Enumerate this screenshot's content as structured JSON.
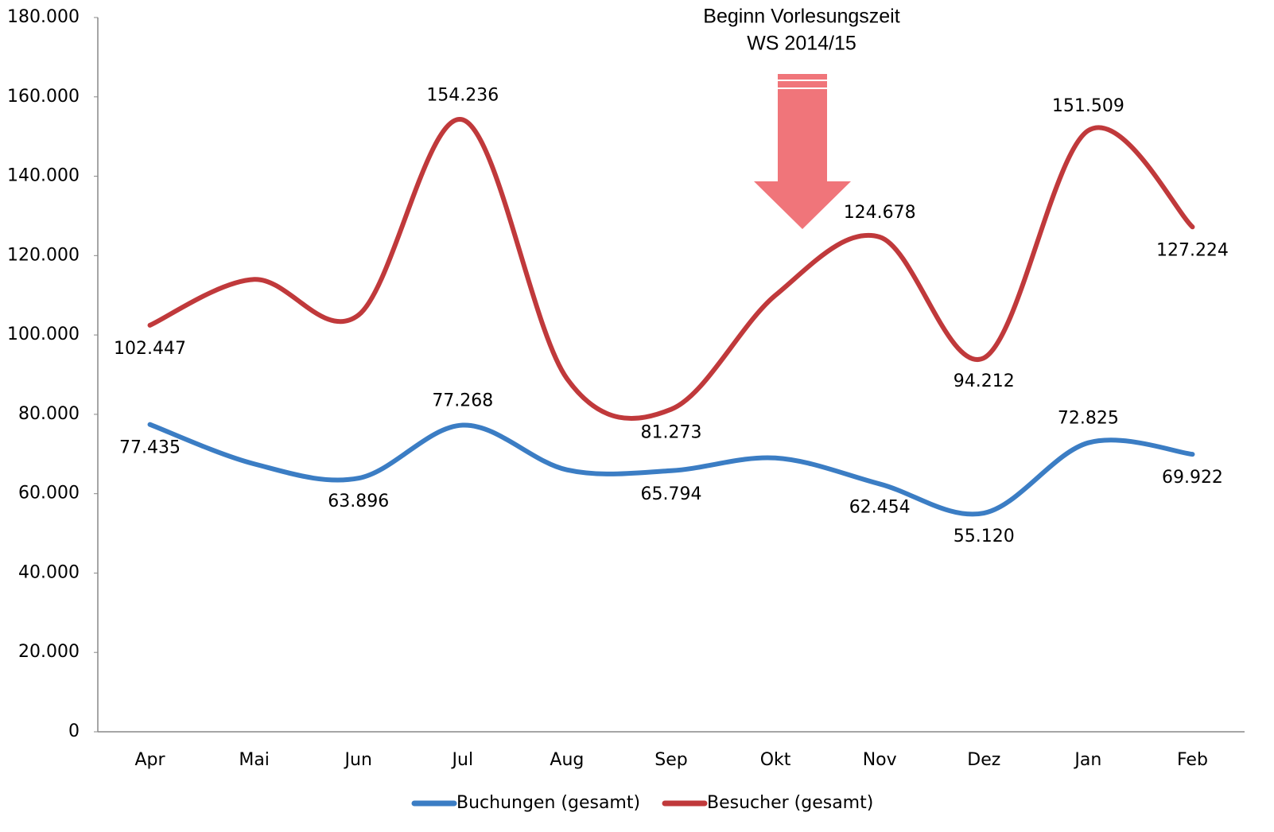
{
  "chart_data": {
    "type": "line",
    "annotation": [
      "Beginn Vorlesungszeit",
      "WS 2014/15"
    ],
    "categories": [
      "Apr",
      "Mai",
      "Jun",
      "Jul",
      "Aug",
      "Sep",
      "Okt",
      "Nov",
      "Dez",
      "Jan",
      "Feb"
    ],
    "series": [
      {
        "name": "Buchungen (gesamt)",
        "color": "#3b7dc4",
        "values": [
          77435,
          67500,
          63896,
          77268,
          66000,
          65794,
          69000,
          62454,
          55120,
          72825,
          69922
        ],
        "value_labels": [
          "77.435",
          null,
          "63.896",
          "77.268",
          null,
          "65.794",
          null,
          "62.454",
          "55.120",
          "72.825",
          "69.922"
        ]
      },
      {
        "name": "Besucher (gesamt)",
        "color": "#c0393b",
        "values": [
          102447,
          114000,
          105000,
          154236,
          89000,
          81273,
          110000,
          124678,
          94212,
          151509,
          127224
        ],
        "value_labels": [
          "102.447",
          null,
          null,
          "154.236",
          null,
          "81.273",
          null,
          "124.678",
          "94.212",
          "151.509",
          "127.224"
        ]
      }
    ],
    "ylim": [
      0,
      180000
    ],
    "yticks": [
      0,
      {
        "value": 20000,
        "label": "20.000"
      },
      {
        "value": 40000,
        "label": "40.000"
      },
      {
        "value": 60000,
        "label": "60.000"
      },
      {
        "value": 80000,
        "label": "80.000"
      },
      {
        "value": 100000,
        "label": "100.000"
      },
      {
        "value": 120000,
        "label": "120.000"
      },
      {
        "value": 140000,
        "label": "140.000"
      },
      {
        "value": 160000,
        "label": "160.000"
      },
      {
        "value": 180000,
        "label": "180.000"
      }
    ],
    "grid": false,
    "legend": "bottom"
  }
}
